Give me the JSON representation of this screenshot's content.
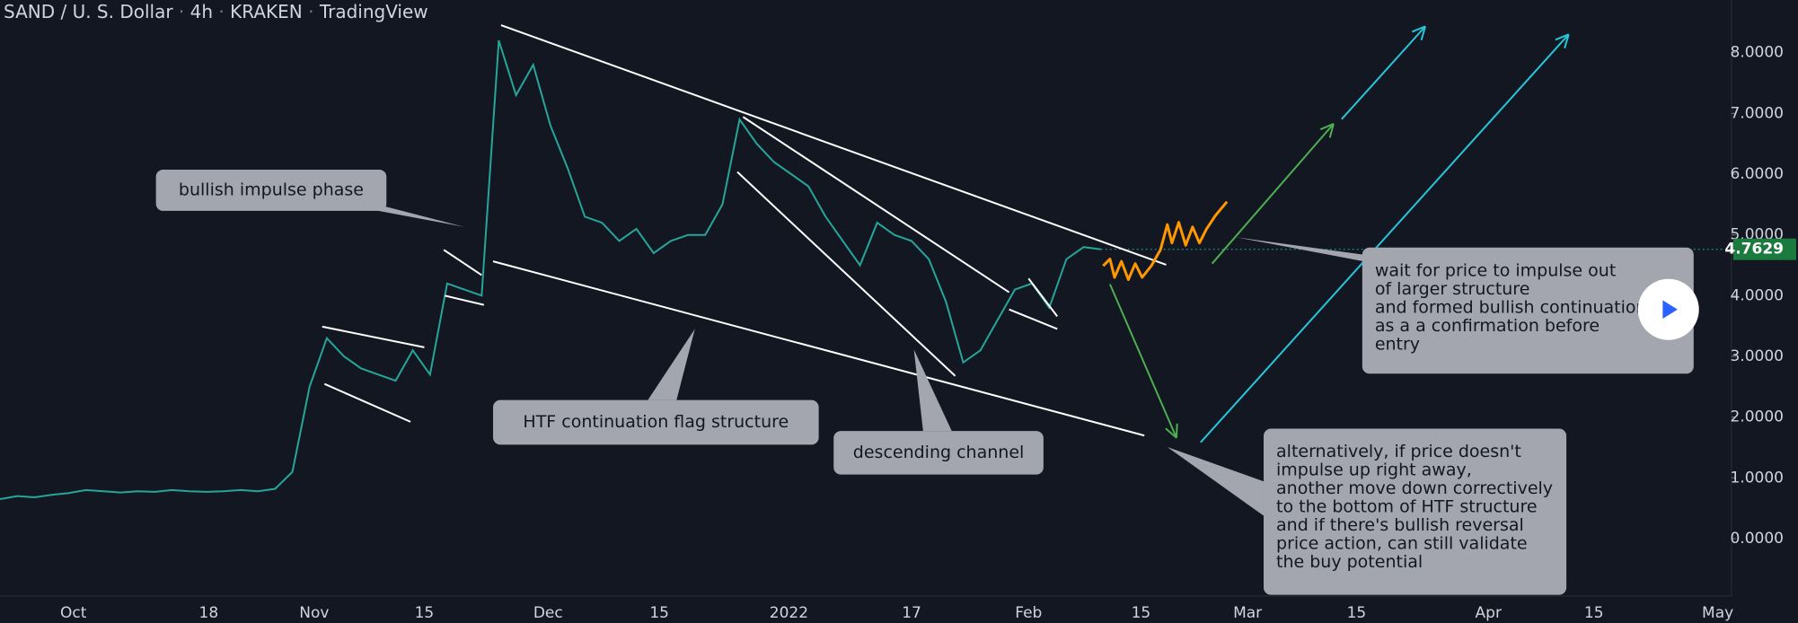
{
  "chart_data": {
    "type": "line",
    "title_parts": [
      "SAND / U. S. Dollar",
      "4h",
      "KRAKEN",
      "TradingView"
    ],
    "xtick_labels": [
      "Oct",
      "18",
      "Nov",
      "15",
      "Dec",
      "15",
      "2022",
      "17",
      "Feb",
      "15",
      "Mar",
      "15",
      "Apr",
      "15",
      "May"
    ],
    "series": [
      {
        "color": "#26a69a",
        "values": [
          0.65,
          0.7,
          0.68,
          0.72,
          0.75,
          0.8,
          0.78,
          0.76,
          0.78,
          0.77,
          0.8,
          0.78,
          0.77,
          0.78,
          0.8,
          0.78,
          0.82,
          1.1,
          2.5,
          3.3,
          3.0,
          2.8,
          2.7,
          2.6,
          3.1,
          2.7,
          4.2,
          4.1,
          4.0,
          8.2,
          7.3,
          7.8,
          6.8,
          6.1,
          5.3,
          5.2,
          4.9,
          5.1,
          4.7,
          4.9,
          5.0,
          5.0,
          5.5,
          6.9,
          6.5,
          6.2,
          6.0,
          5.8,
          5.3,
          4.9,
          4.5,
          5.2,
          5.0,
          4.9,
          4.6,
          3.9,
          2.9,
          3.1,
          3.6,
          4.1,
          4.2,
          3.8,
          4.6,
          4.8,
          4.7629
        ]
      }
    ],
    "ylim": [
      -0.945,
      8.867
    ],
    "yticks": [
      {
        "value": 0,
        "label": "0.0000"
      },
      {
        "value": 1,
        "label": "1.0000"
      },
      {
        "value": 2,
        "label": "2.0000"
      },
      {
        "value": 3,
        "label": "3.0000"
      },
      {
        "value": 4,
        "label": "4.0000"
      },
      {
        "value": 5,
        "label": "5.0000"
      },
      {
        "value": 6,
        "label": "6.0000"
      },
      {
        "value": 7,
        "label": "7.0000"
      },
      {
        "value": 8,
        "label": "8.0000"
      }
    ],
    "last_price": 4.7629,
    "annotations": [
      [
        "bullish impulse phase"
      ],
      [
        "HTF continuation flag structure"
      ],
      [
        "descending channel"
      ],
      [
        "wait for price to impulse out",
        "of larger structure",
        "and formed bullish continuation",
        "as a a confirmation before",
        "entry"
      ],
      [
        "alternatively, if price doesn't",
        "impulse up right away,",
        "another move down correctively",
        "to the bottom of HTF structure",
        "and if there's bullish reversal",
        "price action, can still validate",
        "the buy potential"
      ]
    ]
  }
}
